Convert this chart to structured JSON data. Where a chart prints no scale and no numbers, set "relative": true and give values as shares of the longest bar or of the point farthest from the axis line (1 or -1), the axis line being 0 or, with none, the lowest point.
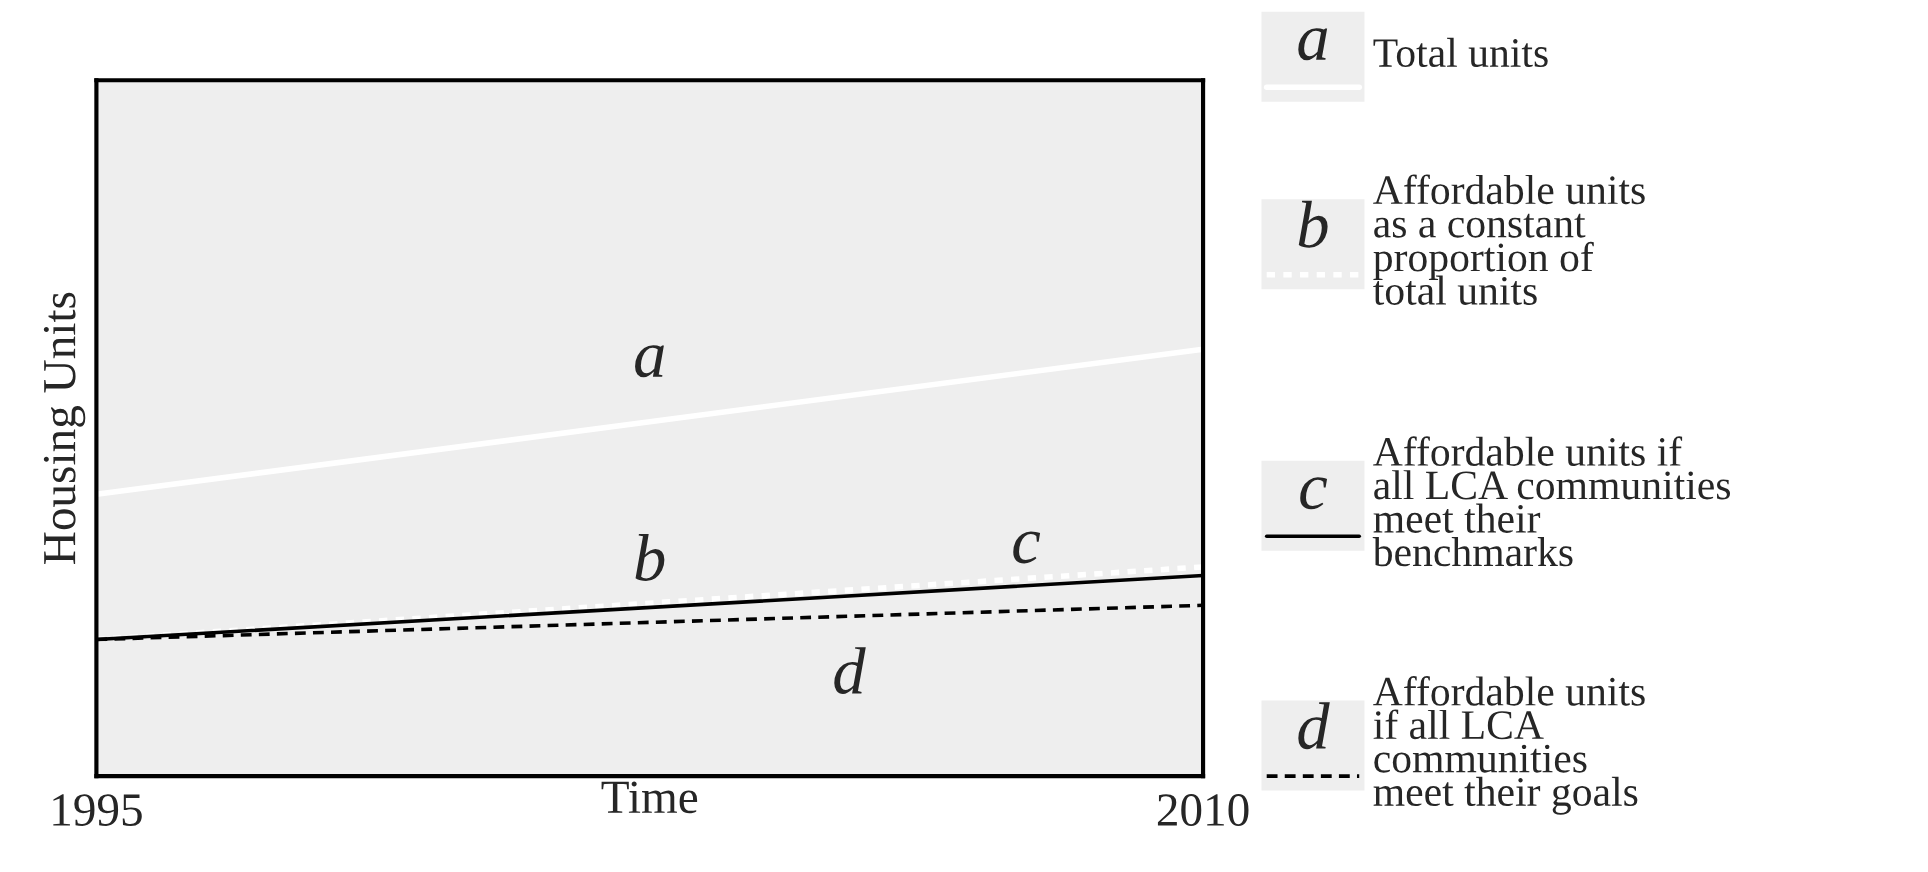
{
  "chart_data": {
    "type": "line",
    "relative": true,
    "xlabel": "Time",
    "ylabel": "Housing Units",
    "x": [
      1995,
      2010
    ],
    "xlim": [
      1995,
      2010
    ],
    "xticks": [
      1995,
      2010
    ],
    "legend": "right",
    "tick_labels": "x",
    "series": [
      {
        "name": "Total units",
        "color": "#ffffff",
        "line_style": "solid",
        "values": [
          0.66,
          1
        ]
      },
      {
        "name": "Affordable units\nas a constant\nproportion of\ntotal units",
        "color": "#ffffff",
        "line_style": "dotted",
        "values": [
          0.32,
          0.49
        ]
      },
      {
        "name": "Affordable units if\nall LCA communities\nmeet their\nbenchmarks",
        "color": "#000000",
        "line_style": "solid",
        "values": [
          0.32,
          0.47
        ]
      },
      {
        "name": "Affordable units\nif all LCA\ncommunities\nmeet their goals",
        "color": "#000000",
        "line_style": "dashed",
        "values": [
          0.32,
          0.4
        ]
      }
    ],
    "annotations": [
      "a",
      "b",
      "c",
      "d"
    ]
  }
}
